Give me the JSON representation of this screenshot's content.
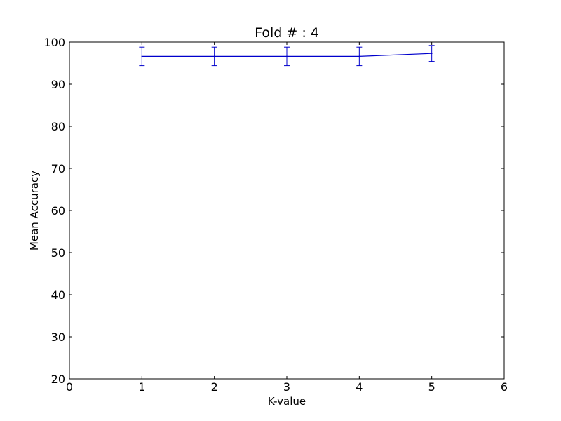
{
  "chart_data": {
    "type": "line",
    "title": "Fold # : 4",
    "xlabel": "K-value",
    "ylabel": "Mean Accuracy",
    "xlim": [
      0,
      6
    ],
    "ylim": [
      20,
      100
    ],
    "xticks": [
      "0",
      "1",
      "2",
      "3",
      "4",
      "5",
      "6"
    ],
    "yticks": [
      "20",
      "30",
      "40",
      "50",
      "60",
      "70",
      "80",
      "90",
      "100"
    ],
    "grid": false,
    "series": [
      {
        "x": [
          1,
          2,
          3,
          4,
          5
        ],
        "y": [
          96.6,
          96.6,
          96.6,
          96.6,
          97.3
        ],
        "err": [
          2.2,
          2.2,
          2.2,
          2.2,
          1.9
        ],
        "color": "#0000cc"
      }
    ]
  }
}
